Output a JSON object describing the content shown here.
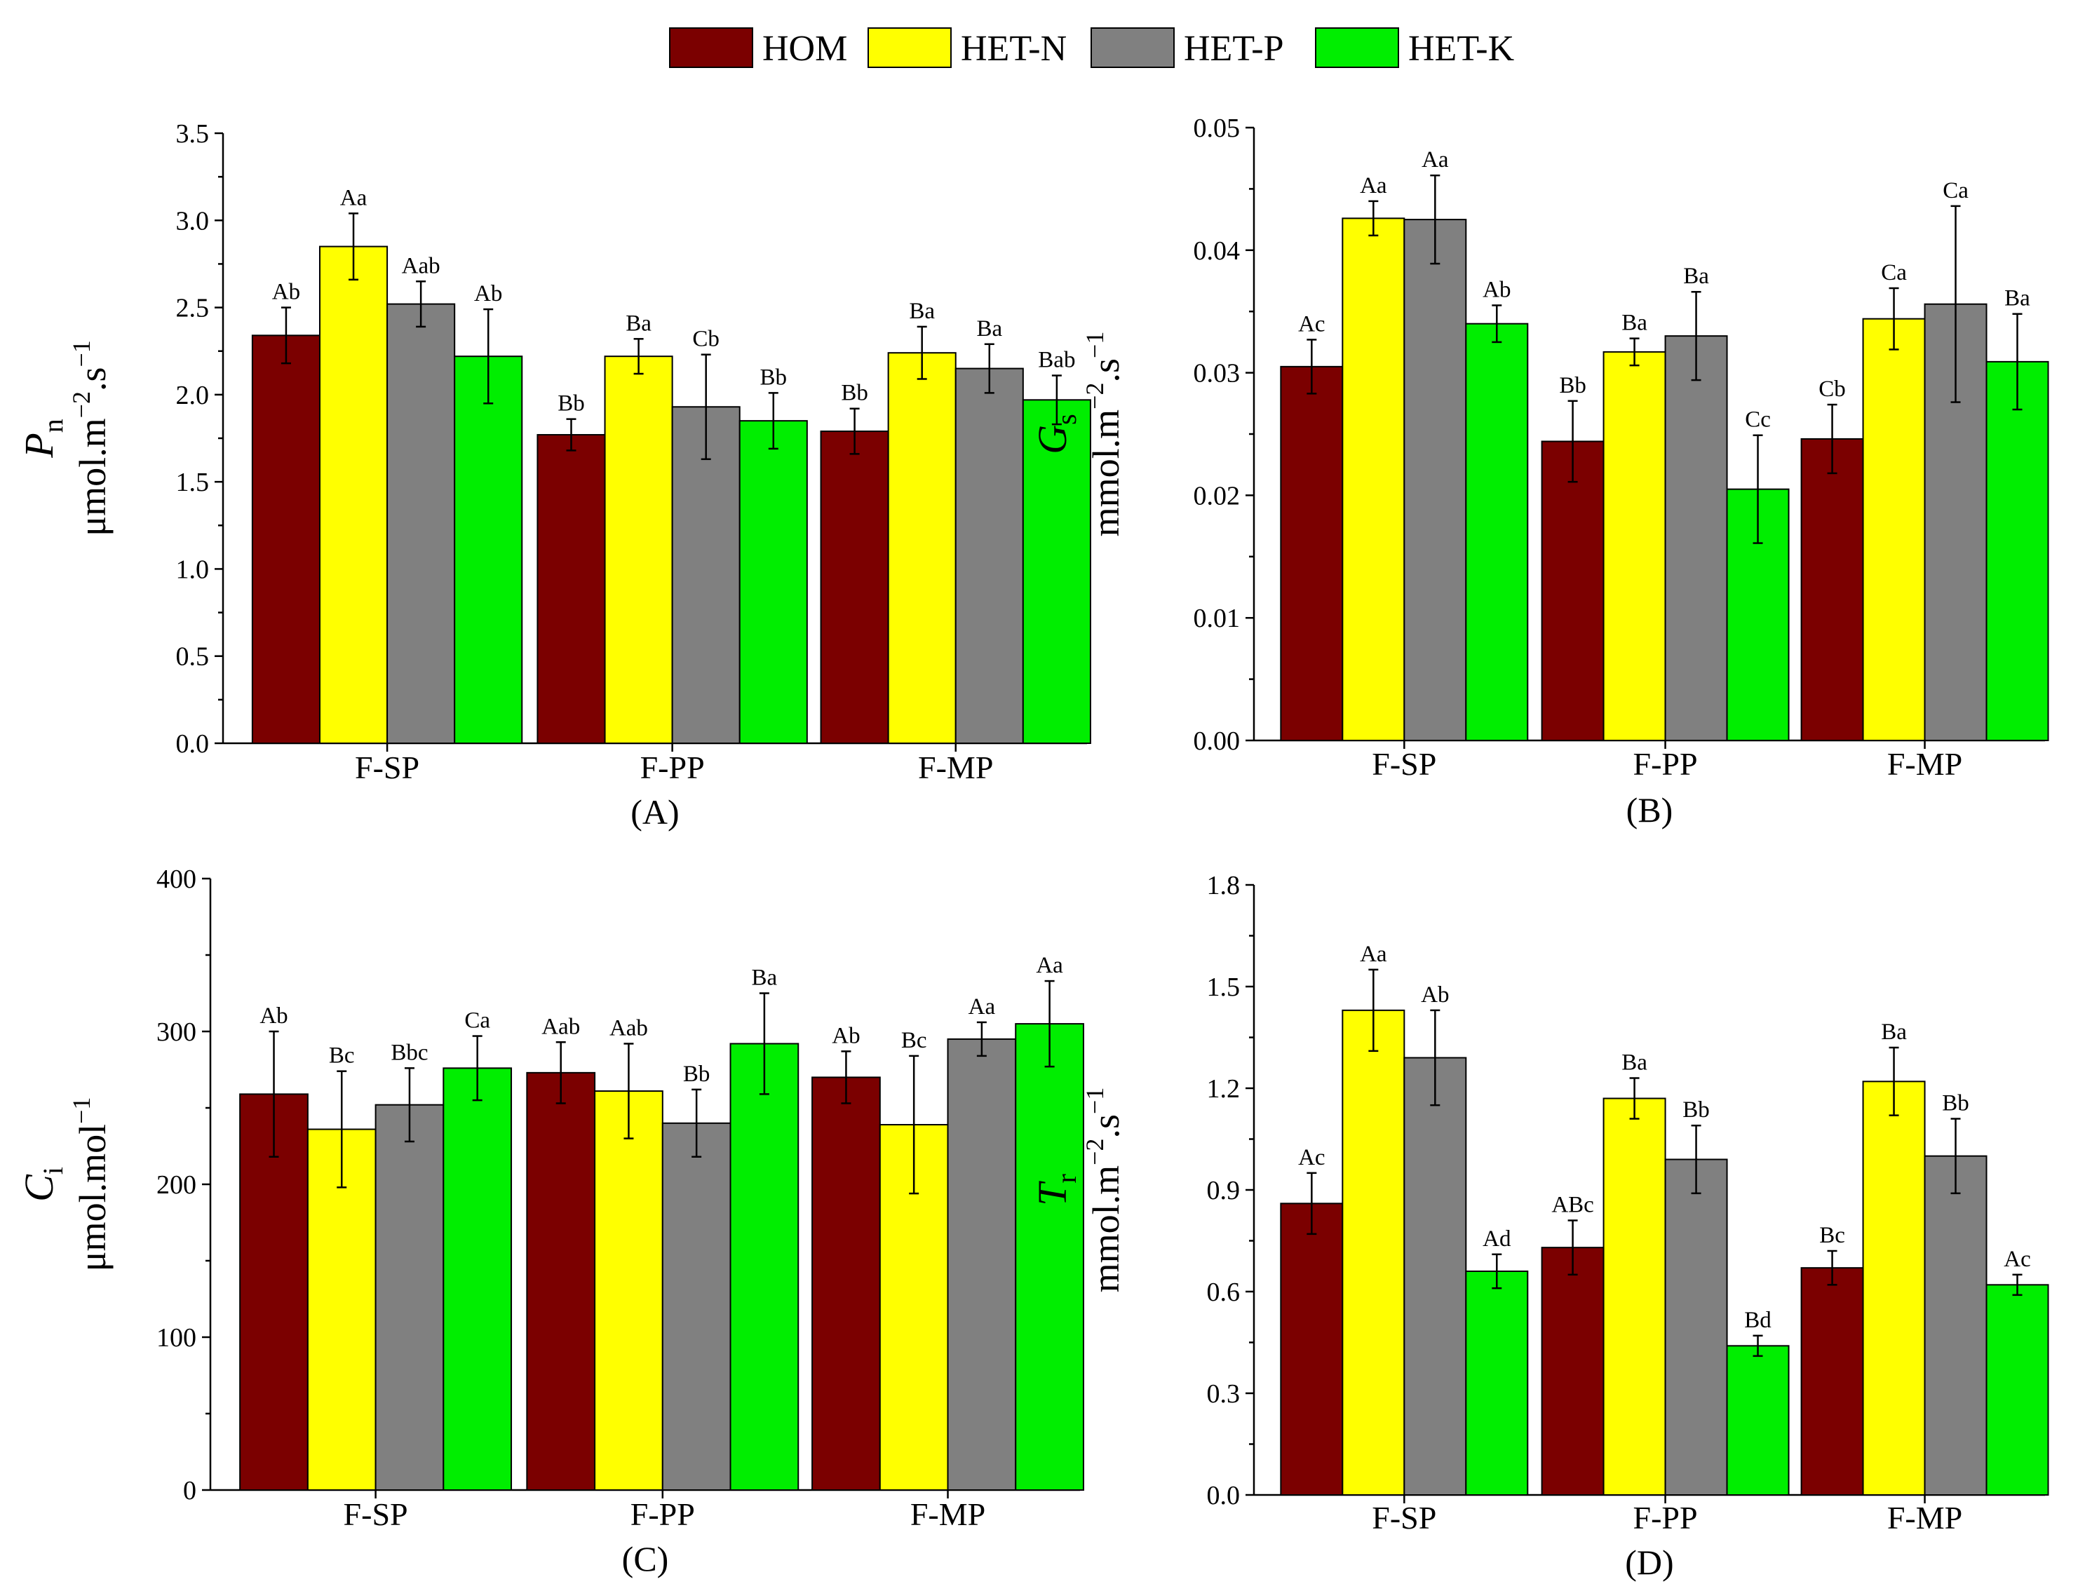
{
  "legend": [
    {
      "name": "HOM",
      "color": "#7b0000"
    },
    {
      "name": "HET-N",
      "color": "#ffff00"
    },
    {
      "name": "HET-P",
      "color": "#808080"
    },
    {
      "name": "HET-K",
      "color": "#00ee00"
    }
  ],
  "chart_data": [
    {
      "type": "bar",
      "panel": "(A)",
      "ylabel": {
        "symbol": "P",
        "sub": "n",
        "unit_prefix": "μmol.m",
        "unit_exp1": "−2",
        "unit_mid": ".s",
        "unit_exp2": "−1"
      },
      "categories": [
        "F-SP",
        "F-PP",
        "F-MP"
      ],
      "ylim": [
        0,
        3.5
      ],
      "yticks": [
        "0.0",
        "0.5",
        "1.0",
        "1.5",
        "2.0",
        "2.5",
        "3.0",
        "3.5"
      ],
      "series": [
        {
          "name": "HOM",
          "values": [
            2.34,
            1.77,
            1.79
          ],
          "errors": [
            0.16,
            0.09,
            0.13
          ],
          "labels": [
            "Ab",
            "Bb",
            "Bb"
          ]
        },
        {
          "name": "HET-N",
          "values": [
            2.85,
            2.22,
            2.24
          ],
          "errors": [
            0.19,
            0.1,
            0.15
          ],
          "labels": [
            "Aa",
            "Ba",
            "Ba"
          ]
        },
        {
          "name": "HET-P",
          "values": [
            2.52,
            1.93,
            2.15
          ],
          "errors": [
            0.13,
            0.3,
            0.14
          ],
          "labels": [
            "Aab",
            "Cb",
            "Ba"
          ]
        },
        {
          "name": "HET-K",
          "values": [
            2.22,
            1.85,
            1.97
          ],
          "errors": [
            0.27,
            0.16,
            0.14
          ],
          "labels": [
            "Ab",
            "Bb",
            "Bab"
          ]
        }
      ]
    },
    {
      "type": "bar",
      "panel": "(B)",
      "ylabel": {
        "symbol": "G",
        "sub": "s",
        "unit_prefix": "mmol.m",
        "unit_exp1": "−2",
        "unit_mid": ".s",
        "unit_exp2": "−1"
      },
      "categories": [
        "F-SP",
        "F-PP",
        "F-MP"
      ],
      "ylim": [
        0,
        0.05
      ],
      "yticks": [
        "0.00",
        "0.01",
        "0.02",
        "0.03",
        "0.04",
        "0.05"
      ],
      "series": [
        {
          "name": "HOM",
          "values": [
            0.0305,
            0.0244,
            0.0246
          ],
          "errors": [
            0.0022,
            0.0033,
            0.0028
          ],
          "labels": [
            "Ac",
            "Bb",
            "Cb"
          ]
        },
        {
          "name": "HET-N",
          "values": [
            0.0426,
            0.0317,
            0.0344
          ],
          "errors": [
            0.0014,
            0.0011,
            0.0025
          ],
          "labels": [
            "Aa",
            "Ba",
            "Ca"
          ]
        },
        {
          "name": "HET-P",
          "values": [
            0.0425,
            0.033,
            0.0356
          ],
          "errors": [
            0.0036,
            0.0036,
            0.008
          ],
          "labels": [
            "Aa",
            "Ba",
            "Ca"
          ]
        },
        {
          "name": "HET-K",
          "values": [
            0.034,
            0.0205,
            0.0309
          ],
          "errors": [
            0.0015,
            0.0044,
            0.0039
          ],
          "labels": [
            "Ab",
            "Cc",
            "Ba"
          ]
        }
      ]
    },
    {
      "type": "bar",
      "panel": "(C)",
      "ylabel": {
        "symbol": "C",
        "sub": "i",
        "unit_prefix": "μmol.mol",
        "unit_exp1": "−1",
        "unit_mid": "",
        "unit_exp2": ""
      },
      "categories": [
        "F-SP",
        "F-PP",
        "F-MP"
      ],
      "ylim": [
        0,
        400
      ],
      "yticks": [
        "0",
        "100",
        "200",
        "300",
        "400"
      ],
      "series": [
        {
          "name": "HOM",
          "values": [
            259,
            273,
            270
          ],
          "errors": [
            41,
            20,
            17
          ],
          "labels": [
            "Ab",
            "Aab",
            "Ab"
          ]
        },
        {
          "name": "HET-N",
          "values": [
            236,
            261,
            239
          ],
          "errors": [
            38,
            31,
            45
          ],
          "labels": [
            "Bc",
            "Aab",
            "Bc"
          ]
        },
        {
          "name": "HET-P",
          "values": [
            252,
            240,
            295
          ],
          "errors": [
            24,
            22,
            11
          ],
          "labels": [
            "Bbc",
            "Bb",
            "Aa"
          ]
        },
        {
          "name": "HET-K",
          "values": [
            276,
            292,
            305
          ],
          "errors": [
            21,
            33,
            28
          ],
          "labels": [
            "Ca",
            "Ba",
            "Aa"
          ]
        }
      ]
    },
    {
      "type": "bar",
      "panel": "(D)",
      "ylabel": {
        "symbol": "T",
        "sub": "r",
        "unit_prefix": "mmol.m",
        "unit_exp1": "−2",
        "unit_mid": ".s",
        "unit_exp2": "−1"
      },
      "categories": [
        "F-SP",
        "F-PP",
        "F-MP"
      ],
      "ylim": [
        0,
        1.8
      ],
      "yticks": [
        "0.0",
        "0.3",
        "0.6",
        "0.9",
        "1.2",
        "1.5",
        "1.8"
      ],
      "series": [
        {
          "name": "HOM",
          "values": [
            0.86,
            0.73,
            0.67
          ],
          "errors": [
            0.09,
            0.08,
            0.05
          ],
          "labels": [
            "Ac",
            "ABc",
            "Bc"
          ]
        },
        {
          "name": "HET-N",
          "values": [
            1.43,
            1.17,
            1.22
          ],
          "errors": [
            0.12,
            0.06,
            0.1
          ],
          "labels": [
            "Aa",
            "Ba",
            "Ba"
          ]
        },
        {
          "name": "HET-P",
          "values": [
            1.29,
            0.99,
            1.0
          ],
          "errors": [
            0.14,
            0.1,
            0.11
          ],
          "labels": [
            "Ab",
            "Bb",
            "Bb"
          ]
        },
        {
          "name": "HET-K",
          "values": [
            0.66,
            0.44,
            0.62
          ],
          "errors": [
            0.05,
            0.03,
            0.03
          ],
          "labels": [
            "Ad",
            "Bd",
            "Ac"
          ]
        }
      ]
    }
  ]
}
